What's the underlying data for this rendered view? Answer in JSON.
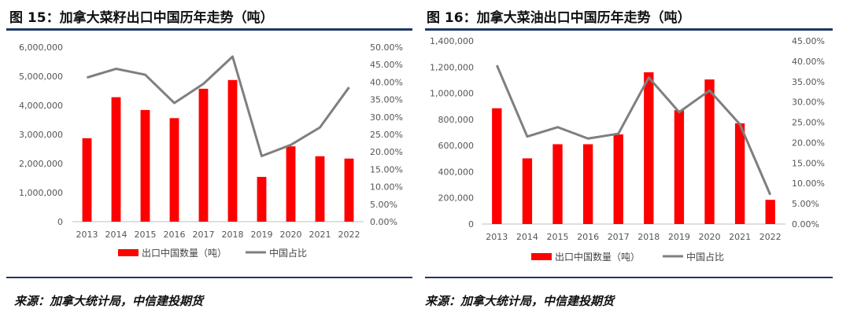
{
  "chart_data": [
    {
      "type": "bar",
      "title": "图 15：加拿大菜籽出口中国历年走势（吨）",
      "categories": [
        "2013",
        "2014",
        "2015",
        "2016",
        "2017",
        "2018",
        "2019",
        "2020",
        "2021",
        "2022"
      ],
      "series": [
        {
          "name": "出口中国数量（吨）",
          "type": "bar",
          "axis": "left",
          "color": "#ff0000",
          "values": [
            2870000,
            4280000,
            3840000,
            3560000,
            4570000,
            4870000,
            1540000,
            2590000,
            2250000,
            2170000
          ]
        },
        {
          "name": "中国占比",
          "type": "line",
          "axis": "right",
          "color": "#7f7f7f",
          "values": [
            41.3,
            43.8,
            42.1,
            34.0,
            39.5,
            47.3,
            18.8,
            22.0,
            27.0,
            38.5
          ]
        }
      ],
      "ylim_left": [
        0,
        6000000
      ],
      "ylim_right": [
        0,
        50
      ],
      "yticks_left": [
        "0",
        "1,000,000",
        "2,000,000",
        "3,000,000",
        "4,000,000",
        "5,000,000",
        "6,000,000"
      ],
      "yticks_right": [
        "0.00%",
        "5.00%",
        "10.00%",
        "15.00%",
        "20.00%",
        "25.00%",
        "30.00%",
        "35.00%",
        "40.00%",
        "45.00%",
        "50.00%"
      ],
      "legend": "bottom",
      "source": "来源：加拿大统计局，中信建投期货"
    },
    {
      "type": "bar",
      "title": "图 16：加拿大菜油出口中国历年走势（吨）",
      "categories": [
        "2013",
        "2014",
        "2015",
        "2016",
        "2017",
        "2018",
        "2019",
        "2020",
        "2021",
        "2022"
      ],
      "series": [
        {
          "name": "出口中国数量（吨）",
          "type": "bar",
          "axis": "left",
          "color": "#ff0000",
          "values": [
            885000,
            502000,
            610000,
            610000,
            685000,
            1160000,
            870000,
            1105000,
            770000,
            185000
          ]
        },
        {
          "name": "中国占比",
          "type": "line",
          "axis": "right",
          "color": "#7f7f7f",
          "values": [
            39.0,
            21.5,
            23.8,
            21.0,
            22.2,
            36.0,
            27.5,
            32.8,
            24.5,
            7.2
          ]
        }
      ],
      "ylim_left": [
        0,
        1400000
      ],
      "ylim_right": [
        0,
        45
      ],
      "yticks_left": [
        "0",
        "200,000",
        "400,000",
        "600,000",
        "800,000",
        "1,000,000",
        "1,200,000",
        "1,400,000"
      ],
      "yticks_right": [
        "0.00%",
        "5.00%",
        "10.00%",
        "15.00%",
        "20.00%",
        "25.00%",
        "30.00%",
        "35.00%",
        "40.00%",
        "45.00%"
      ],
      "legend": "bottom",
      "source": "来源：加拿大统计局，中信建投期货"
    }
  ]
}
